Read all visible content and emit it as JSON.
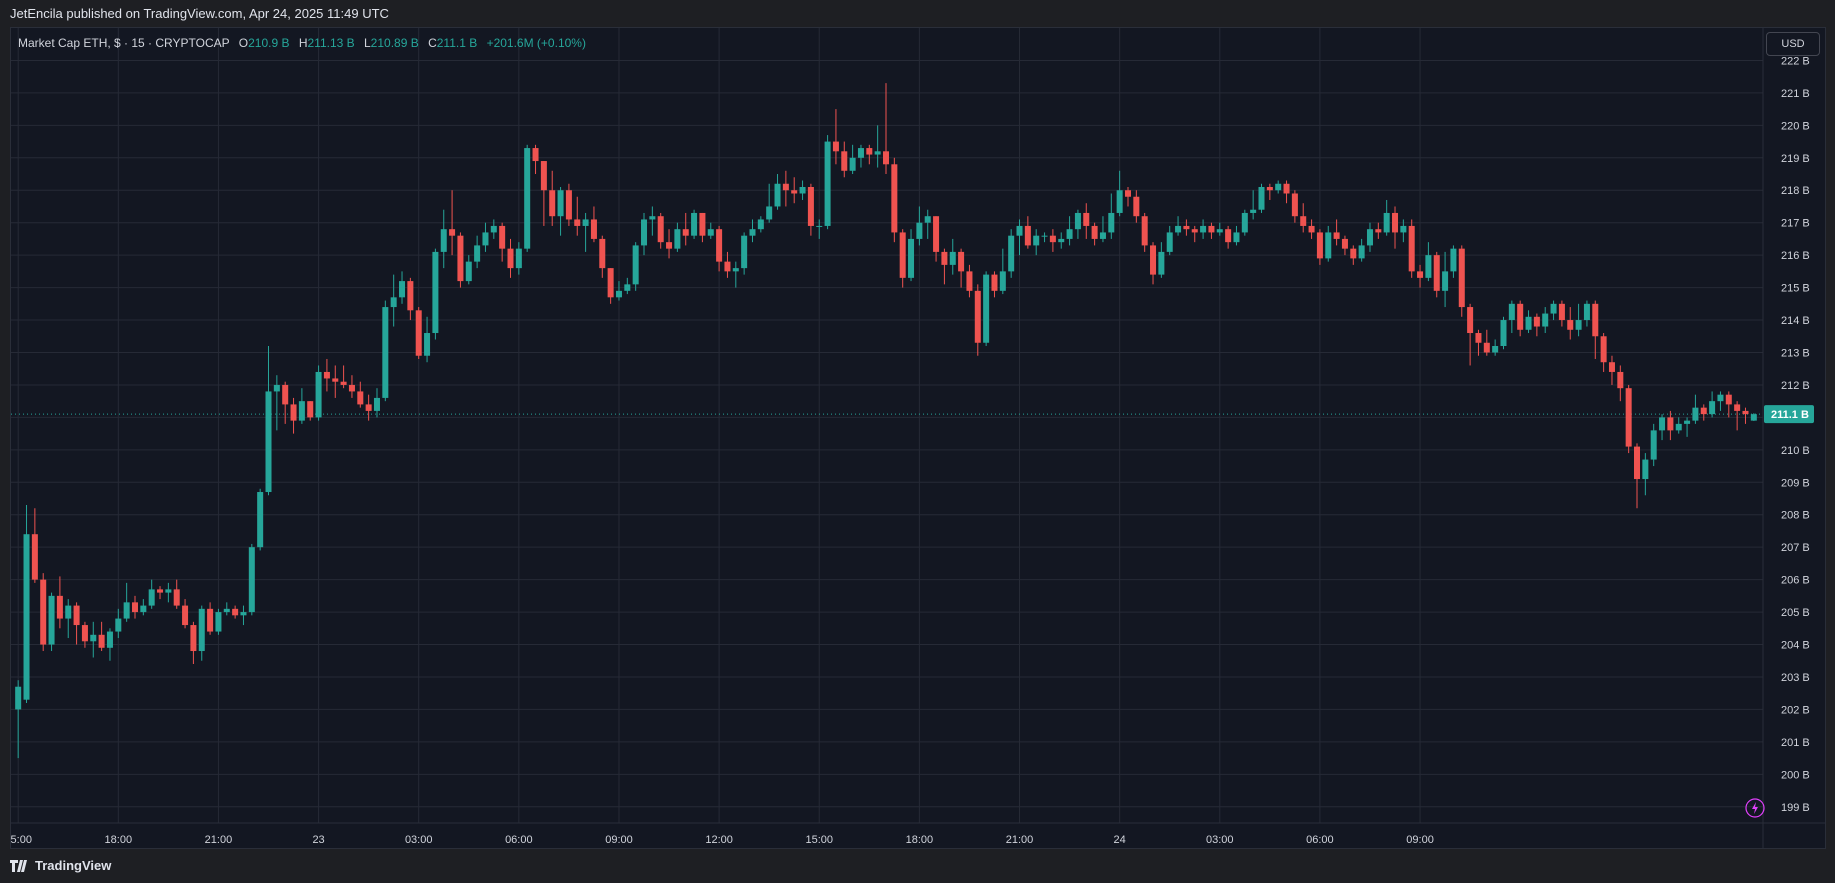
{
  "header": {
    "publish_line": "JetEncila published on TradingView.com, Apr 24, 2025 11:49 UTC"
  },
  "legend": {
    "symbol": "Market Cap ETH, $ · 15 · CRYPTOCAP",
    "o_label": "O",
    "o_value": "210.9 B",
    "h_label": "H",
    "h_value": "211.13 B",
    "l_label": "L",
    "l_value": "210.89 B",
    "c_label": "C",
    "c_value": "211.1 B",
    "change": "+201.6M (+0.10%)"
  },
  "currency_button": "USD",
  "footer": {
    "brand": "TradingView",
    "logo_icon": "tradingview-logo-icon"
  },
  "colors": {
    "up": "#26a69a",
    "down": "#ef5350",
    "background": "#131722",
    "grid": "#262a36"
  },
  "chart_data": {
    "type": "candlestick",
    "y_unit": "B",
    "ylim": [
      198.5,
      223.0
    ],
    "y_ticks": [
      "222 B",
      "221 B",
      "220 B",
      "219 B",
      "218 B",
      "217 B",
      "216 B",
      "215 B",
      "214 B",
      "213 B",
      "212 B",
      "211 B",
      "210 B",
      "209 B",
      "208 B",
      "207 B",
      "206 B",
      "205 B",
      "204 B",
      "203 B",
      "202 B",
      "201 B",
      "200 B",
      "199 B"
    ],
    "y_tick_values": [
      222,
      221,
      220,
      219,
      218,
      217,
      216,
      215,
      214,
      213,
      212,
      211,
      210,
      209,
      208,
      207,
      206,
      205,
      204,
      203,
      202,
      201,
      200,
      199
    ],
    "x_ticks": [
      "15:00",
      "18:00",
      "21:00",
      "23",
      "03:00",
      "06:00",
      "09:00",
      "12:00",
      "15:00",
      "18:00",
      "21:00",
      "24",
      "03:00",
      "06:00",
      "09:00"
    ],
    "x_tick_index": [
      0,
      12,
      24,
      36,
      48,
      60,
      72,
      84,
      96,
      108,
      120,
      132,
      144,
      156,
      168
    ],
    "last_price_label": "211.1 B",
    "last_price": 211.1,
    "grid": true,
    "candles": [
      [
        202.0,
        202.7,
        200.5,
        202.9
      ],
      [
        202.3,
        207.4,
        202.2,
        208.3
      ],
      [
        207.4,
        206.0,
        205.9,
        208.2
      ],
      [
        206.0,
        204.0,
        203.8,
        206.2
      ],
      [
        204.0,
        205.5,
        203.8,
        205.6
      ],
      [
        205.5,
        204.8,
        204.5,
        206.1
      ],
      [
        204.8,
        205.2,
        204.2,
        205.4
      ],
      [
        205.2,
        204.6,
        204.0,
        205.3
      ],
      [
        204.6,
        204.1,
        203.9,
        204.7
      ],
      [
        204.1,
        204.3,
        203.6,
        204.7
      ],
      [
        204.3,
        203.9,
        203.8,
        204.7
      ],
      [
        203.9,
        204.4,
        203.5,
        204.5
      ],
      [
        204.4,
        204.8,
        204.2,
        205.1
      ],
      [
        204.8,
        205.3,
        204.7,
        205.9
      ],
      [
        205.3,
        205.0,
        204.8,
        205.5
      ],
      [
        205.0,
        205.2,
        204.9,
        205.4
      ],
      [
        205.2,
        205.7,
        205.1,
        206.0
      ],
      [
        205.7,
        205.6,
        205.4,
        205.8
      ],
      [
        205.6,
        205.7,
        205.3,
        205.9
      ],
      [
        205.7,
        205.2,
        205.1,
        206.0
      ],
      [
        205.2,
        204.6,
        204.5,
        205.4
      ],
      [
        204.6,
        203.8,
        203.4,
        204.7
      ],
      [
        203.8,
        205.1,
        203.5,
        205.2
      ],
      [
        205.1,
        204.4,
        204.3,
        205.3
      ],
      [
        204.4,
        205.0,
        204.3,
        205.1
      ],
      [
        205.0,
        205.1,
        204.9,
        205.3
      ],
      [
        205.1,
        204.9,
        204.8,
        205.2
      ],
      [
        204.9,
        205.0,
        204.6,
        205.2
      ],
      [
        205.0,
        207.0,
        204.9,
        207.1
      ],
      [
        207.0,
        208.7,
        206.9,
        208.8
      ],
      [
        208.7,
        211.8,
        208.6,
        213.2
      ],
      [
        211.8,
        212.0,
        210.6,
        212.3
      ],
      [
        212.0,
        211.4,
        210.8,
        212.1
      ],
      [
        211.4,
        210.9,
        210.5,
        211.6
      ],
      [
        210.9,
        211.5,
        210.8,
        211.9
      ],
      [
        211.5,
        211.0,
        210.9,
        211.5
      ],
      [
        211.0,
        212.4,
        210.9,
        212.6
      ],
      [
        212.4,
        212.2,
        211.8,
        212.8
      ],
      [
        212.2,
        212.1,
        211.6,
        212.6
      ],
      [
        212.1,
        212.0,
        211.9,
        212.6
      ],
      [
        212.0,
        211.8,
        211.6,
        212.3
      ],
      [
        211.8,
        211.4,
        211.3,
        212.1
      ],
      [
        211.4,
        211.2,
        210.9,
        211.7
      ],
      [
        211.2,
        211.6,
        211.0,
        211.9
      ],
      [
        211.6,
        214.4,
        211.5,
        214.6
      ],
      [
        214.4,
        214.7,
        213.8,
        215.4
      ],
      [
        214.7,
        215.2,
        214.5,
        215.5
      ],
      [
        215.2,
        214.3,
        214.0,
        215.3
      ],
      [
        214.3,
        212.9,
        212.8,
        214.4
      ],
      [
        212.9,
        213.6,
        212.7,
        214.1
      ],
      [
        213.6,
        216.1,
        213.4,
        216.2
      ],
      [
        216.1,
        216.8,
        215.6,
        217.4
      ],
      [
        216.8,
        216.6,
        216.0,
        218.0
      ],
      [
        216.6,
        215.2,
        215.0,
        216.7
      ],
      [
        215.2,
        215.8,
        215.1,
        216.0
      ],
      [
        215.8,
        216.3,
        215.6,
        216.6
      ],
      [
        216.3,
        216.7,
        216.1,
        217.0
      ],
      [
        216.7,
        216.9,
        216.5,
        217.1
      ],
      [
        216.9,
        216.2,
        215.8,
        217.0
      ],
      [
        216.2,
        215.6,
        215.3,
        216.5
      ],
      [
        215.6,
        216.2,
        215.4,
        216.4
      ],
      [
        216.2,
        219.3,
        216.1,
        219.4
      ],
      [
        219.3,
        218.9,
        218.5,
        219.4
      ],
      [
        218.9,
        218.0,
        216.9,
        218.9
      ],
      [
        218.0,
        217.2,
        216.9,
        218.6
      ],
      [
        217.2,
        218.0,
        216.6,
        218.1
      ],
      [
        218.0,
        217.1,
        216.9,
        218.2
      ],
      [
        217.1,
        216.9,
        216.6,
        217.8
      ],
      [
        216.9,
        217.1,
        216.1,
        217.3
      ],
      [
        217.1,
        216.5,
        216.4,
        217.5
      ],
      [
        216.5,
        215.6,
        215.3,
        216.6
      ],
      [
        215.6,
        214.7,
        214.5,
        215.6
      ],
      [
        214.7,
        214.9,
        214.6,
        215.2
      ],
      [
        214.9,
        215.1,
        214.8,
        215.3
      ],
      [
        215.1,
        216.3,
        214.9,
        216.4
      ],
      [
        216.3,
        217.1,
        216.0,
        217.3
      ],
      [
        217.1,
        217.2,
        216.6,
        217.5
      ],
      [
        217.2,
        216.4,
        216.2,
        217.3
      ],
      [
        216.4,
        216.2,
        215.9,
        216.8
      ],
      [
        216.2,
        216.8,
        216.1,
        217.0
      ],
      [
        216.8,
        216.6,
        216.3,
        217.3
      ],
      [
        216.6,
        217.3,
        216.5,
        217.4
      ],
      [
        217.3,
        216.6,
        216.4,
        217.3
      ],
      [
        216.6,
        216.8,
        216.5,
        217.0
      ],
      [
        216.8,
        215.8,
        215.5,
        216.9
      ],
      [
        215.8,
        215.5,
        215.3,
        216.1
      ],
      [
        215.5,
        215.6,
        215.0,
        215.8
      ],
      [
        215.6,
        216.6,
        215.4,
        216.7
      ],
      [
        216.6,
        216.8,
        216.4,
        217.1
      ],
      [
        216.8,
        217.1,
        216.7,
        217.2
      ],
      [
        217.1,
        217.5,
        217.0,
        218.2
      ],
      [
        217.5,
        218.2,
        217.4,
        218.5
      ],
      [
        218.2,
        218.0,
        217.5,
        218.6
      ],
      [
        218.0,
        217.9,
        217.6,
        218.4
      ],
      [
        217.9,
        218.1,
        217.7,
        218.3
      ],
      [
        218.1,
        216.9,
        216.6,
        218.2
      ],
      [
        216.9,
        216.9,
        216.5,
        217.1
      ],
      [
        216.9,
        219.5,
        216.8,
        219.7
      ],
      [
        219.5,
        219.2,
        218.8,
        220.5
      ],
      [
        219.2,
        218.6,
        218.4,
        219.5
      ],
      [
        218.6,
        219.0,
        218.5,
        219.4
      ],
      [
        219.0,
        219.3,
        218.7,
        219.4
      ],
      [
        219.3,
        219.1,
        218.8,
        219.4
      ],
      [
        219.1,
        219.2,
        218.7,
        220.0
      ],
      [
        219.2,
        218.8,
        218.5,
        221.3
      ],
      [
        218.8,
        216.7,
        216.4,
        219.0
      ],
      [
        216.7,
        215.3,
        215.0,
        216.8
      ],
      [
        215.3,
        216.5,
        215.2,
        216.8
      ],
      [
        216.5,
        217.0,
        216.3,
        217.5
      ],
      [
        217.0,
        217.2,
        216.5,
        217.4
      ],
      [
        217.2,
        216.1,
        215.8,
        217.2
      ],
      [
        216.1,
        215.7,
        215.1,
        216.2
      ],
      [
        215.7,
        216.1,
        215.4,
        216.5
      ],
      [
        216.1,
        215.5,
        215.0,
        216.2
      ],
      [
        215.5,
        214.9,
        214.7,
        215.7
      ],
      [
        214.9,
        213.3,
        212.9,
        215.1
      ],
      [
        213.3,
        215.4,
        213.2,
        215.5
      ],
      [
        215.4,
        214.9,
        214.7,
        215.5
      ],
      [
        214.9,
        215.5,
        214.8,
        216.2
      ],
      [
        215.5,
        216.6,
        215.3,
        216.8
      ],
      [
        216.6,
        216.9,
        216.0,
        217.1
      ],
      [
        216.9,
        216.3,
        216.2,
        217.2
      ],
      [
        216.3,
        216.6,
        216.0,
        216.8
      ],
      [
        216.6,
        216.6,
        216.4,
        216.7
      ],
      [
        216.6,
        216.4,
        216.1,
        216.8
      ],
      [
        216.4,
        216.5,
        216.2,
        216.7
      ],
      [
        216.5,
        216.8,
        216.3,
        217.2
      ],
      [
        216.8,
        217.3,
        216.5,
        217.4
      ],
      [
        217.3,
        216.9,
        216.5,
        217.6
      ],
      [
        216.9,
        216.5,
        216.3,
        217.0
      ],
      [
        216.5,
        216.7,
        216.4,
        217.2
      ],
      [
        216.7,
        217.3,
        216.5,
        217.9
      ],
      [
        217.3,
        218.0,
        217.2,
        218.6
      ],
      [
        218.0,
        217.8,
        217.5,
        218.1
      ],
      [
        217.8,
        217.2,
        217.0,
        218.0
      ],
      [
        217.2,
        216.3,
        216.1,
        217.3
      ],
      [
        216.3,
        215.4,
        215.1,
        216.4
      ],
      [
        215.4,
        216.1,
        215.3,
        216.4
      ],
      [
        216.1,
        216.7,
        216.0,
        216.9
      ],
      [
        216.7,
        216.9,
        216.6,
        217.2
      ],
      [
        216.9,
        216.8,
        216.6,
        217.1
      ],
      [
        216.8,
        216.7,
        216.4,
        216.9
      ],
      [
        216.7,
        216.9,
        216.5,
        217.1
      ],
      [
        216.9,
        216.7,
        216.5,
        217.0
      ],
      [
        216.7,
        216.8,
        216.6,
        217.0
      ],
      [
        216.8,
        216.4,
        216.2,
        216.9
      ],
      [
        216.4,
        216.7,
        216.3,
        216.9
      ],
      [
        216.7,
        217.3,
        216.6,
        217.4
      ],
      [
        217.3,
        217.4,
        217.1,
        218.0
      ],
      [
        217.4,
        218.1,
        217.3,
        218.2
      ],
      [
        218.1,
        218.0,
        217.7,
        218.2
      ],
      [
        218.0,
        218.2,
        217.9,
        218.3
      ],
      [
        218.2,
        217.9,
        217.6,
        218.3
      ],
      [
        217.9,
        217.2,
        217.0,
        218.0
      ],
      [
        217.2,
        216.9,
        216.7,
        217.6
      ],
      [
        216.9,
        216.7,
        216.5,
        217.1
      ],
      [
        216.7,
        215.9,
        215.7,
        216.8
      ],
      [
        215.9,
        216.7,
        215.8,
        216.9
      ],
      [
        216.7,
        216.5,
        216.3,
        217.1
      ],
      [
        216.5,
        216.2,
        216.0,
        216.6
      ],
      [
        216.2,
        215.9,
        215.7,
        216.3
      ],
      [
        215.9,
        216.3,
        215.8,
        216.5
      ],
      [
        216.3,
        216.8,
        216.1,
        217.0
      ],
      [
        216.8,
        216.7,
        216.5,
        217.0
      ],
      [
        216.7,
        217.3,
        216.6,
        217.7
      ],
      [
        217.3,
        216.7,
        216.2,
        217.5
      ],
      [
        216.7,
        216.9,
        216.4,
        217.1
      ],
      [
        216.9,
        215.5,
        215.3,
        217.1
      ]
    ],
    "candles_tail": [
      [
        215.5,
        215.3,
        215.0,
        215.7
      ],
      [
        215.3,
        216.0,
        215.2,
        216.4
      ],
      [
        216.0,
        214.9,
        214.7,
        216.1
      ],
      [
        214.9,
        215.5,
        214.4,
        216.1
      ],
      [
        215.5,
        216.2,
        215.3,
        216.3
      ],
      [
        216.2,
        214.4,
        214.1,
        216.3
      ],
      [
        214.4,
        213.6,
        212.6,
        214.5
      ],
      [
        213.6,
        213.3,
        212.9,
        213.7
      ],
      [
        213.3,
        213.0,
        212.9,
        213.7
      ],
      [
        213.0,
        213.2,
        212.9,
        213.4
      ],
      [
        213.2,
        214.0,
        213.1,
        214.1
      ],
      [
        214.0,
        214.5,
        213.6,
        214.6
      ],
      [
        214.5,
        213.7,
        213.5,
        214.6
      ],
      [
        213.7,
        214.1,
        213.6,
        214.3
      ],
      [
        214.1,
        213.8,
        213.5,
        214.2
      ],
      [
        213.8,
        214.2,
        213.6,
        214.4
      ],
      [
        214.2,
        214.5,
        214.0,
        214.6
      ],
      [
        214.5,
        214.0,
        213.8,
        214.6
      ],
      [
        214.0,
        213.7,
        213.4,
        214.4
      ],
      [
        213.7,
        214.0,
        213.5,
        214.5
      ],
      [
        214.0,
        214.5,
        213.8,
        214.6
      ],
      [
        214.5,
        213.5,
        212.8,
        214.6
      ],
      [
        213.5,
        212.7,
        212.4,
        213.6
      ],
      [
        212.7,
        212.4,
        212.0,
        212.9
      ],
      [
        212.4,
        211.9,
        211.5,
        212.6
      ],
      [
        211.9,
        210.1,
        209.9,
        212.0
      ],
      [
        210.1,
        209.1,
        208.2,
        210.2
      ],
      [
        209.1,
        209.7,
        208.6,
        209.9
      ],
      [
        209.7,
        210.6,
        209.5,
        210.8
      ],
      [
        210.6,
        211.0,
        210.3,
        211.1
      ],
      [
        211.0,
        210.6,
        210.3,
        211.2
      ],
      [
        210.6,
        210.8,
        210.5,
        211.0
      ],
      [
        210.8,
        210.9,
        210.4,
        211.0
      ],
      [
        210.9,
        211.3,
        210.8,
        211.7
      ],
      [
        211.3,
        211.1,
        210.9,
        211.4
      ],
      [
        211.1,
        211.5,
        211.0,
        211.8
      ],
      [
        211.5,
        211.7,
        211.2,
        211.8
      ],
      [
        211.7,
        211.4,
        211.0,
        211.8
      ],
      [
        211.4,
        211.2,
        210.6,
        211.5
      ],
      [
        211.2,
        211.1,
        210.8,
        211.3
      ],
      [
        210.9,
        211.1,
        210.89,
        211.13
      ]
    ]
  }
}
